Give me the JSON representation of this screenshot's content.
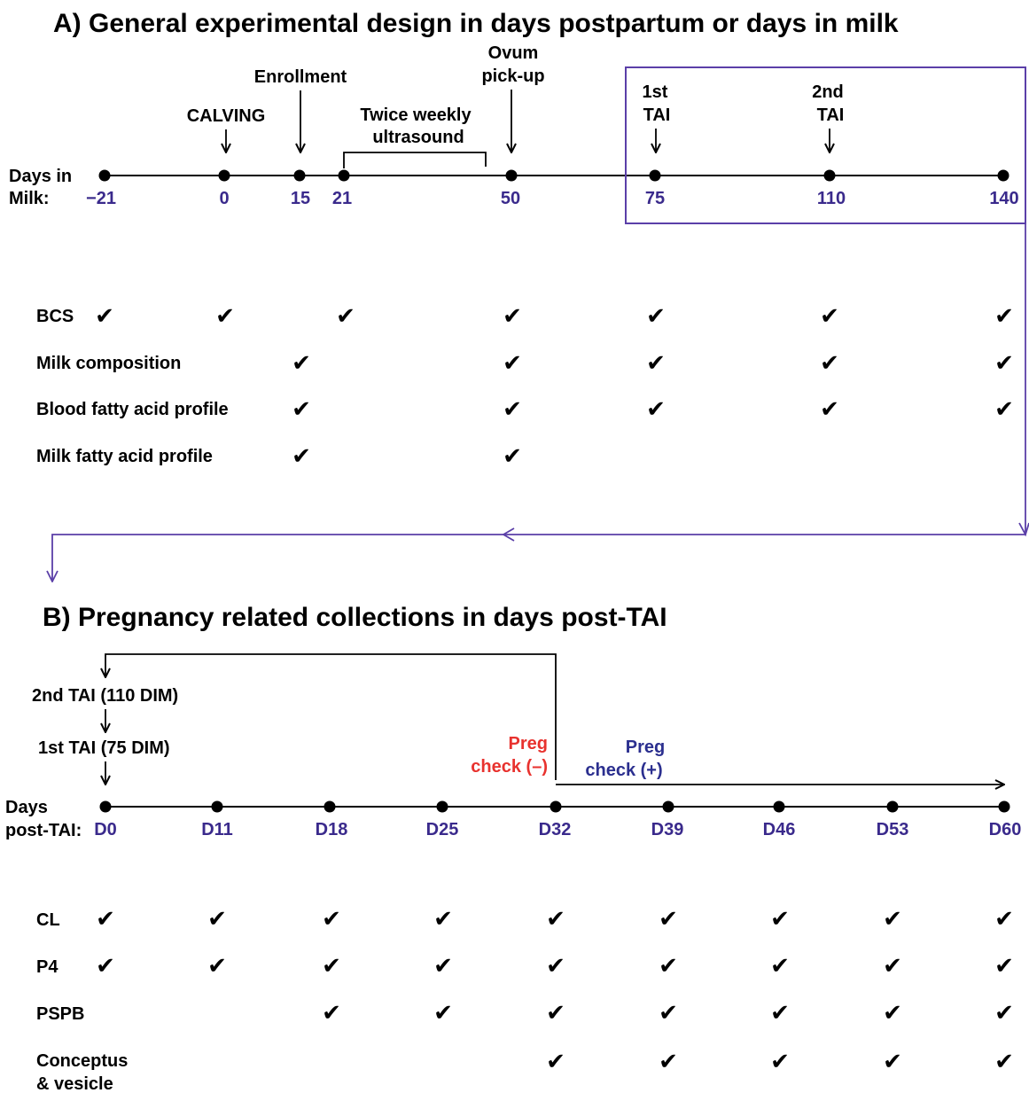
{
  "section_a": {
    "title": "A) General experimental design in days postpartum or days in milk",
    "axis_label": [
      "Days in",
      "Milk:"
    ],
    "days": [
      "−21",
      "0",
      "15",
      "21",
      "50",
      "75",
      "110",
      "140"
    ],
    "events": {
      "calving": "CALVING",
      "enrollment": "Enrollment",
      "ultrasound": [
        "Twice weekly",
        "ultrasound"
      ],
      "ovum_pickup": [
        "Ovum",
        "pick-up"
      ],
      "tai1": [
        "1st",
        "TAI"
      ],
      "tai2": [
        "2nd",
        "TAI"
      ]
    },
    "measures": [
      {
        "label": "BCS",
        "checks": [
          true,
          true,
          false,
          true,
          true,
          true,
          true,
          true
        ]
      },
      {
        "label": "Milk composition",
        "checks": [
          false,
          false,
          true,
          false,
          true,
          true,
          true,
          true
        ]
      },
      {
        "label": "Blood fatty acid profile",
        "checks": [
          false,
          false,
          true,
          false,
          true,
          true,
          true,
          true
        ]
      },
      {
        "label": "Milk fatty acid profile",
        "checks": [
          false,
          false,
          true,
          false,
          true,
          false,
          false,
          false
        ]
      }
    ]
  },
  "section_b": {
    "title": "B) Pregnancy related collections in days post-TAI",
    "axis_label": [
      "Days",
      "post-TAI:"
    ],
    "days": [
      "D0",
      "D11",
      "D18",
      "D25",
      "D32",
      "D39",
      "D46",
      "D53",
      "D60"
    ],
    "events": {
      "tai2": "2nd TAI (110 DIM)",
      "tai1": "1st TAI (75 DIM)",
      "preg_neg": [
        "Preg",
        "check (–)"
      ],
      "preg_pos": [
        "Preg",
        "check (+)"
      ]
    },
    "measures": [
      {
        "label": [
          "CL"
        ],
        "checks": [
          true,
          true,
          true,
          true,
          true,
          true,
          true,
          true,
          true
        ]
      },
      {
        "label": [
          "P4"
        ],
        "checks": [
          true,
          true,
          true,
          true,
          true,
          true,
          true,
          true,
          true
        ]
      },
      {
        "label": [
          "PSPB"
        ],
        "checks": [
          false,
          false,
          true,
          true,
          true,
          true,
          true,
          true,
          true
        ]
      },
      {
        "label": [
          "Conceptus",
          "& vesicle"
        ],
        "checks": [
          false,
          false,
          false,
          false,
          true,
          true,
          true,
          true,
          true
        ]
      }
    ]
  },
  "colors": {
    "day_label": "#3a2a8c",
    "frame": "#5b3fa8",
    "preg_negative": "#e8322e",
    "preg_positive": "#2b2f8f",
    "text": "#000000"
  },
  "check_glyph": "✔"
}
